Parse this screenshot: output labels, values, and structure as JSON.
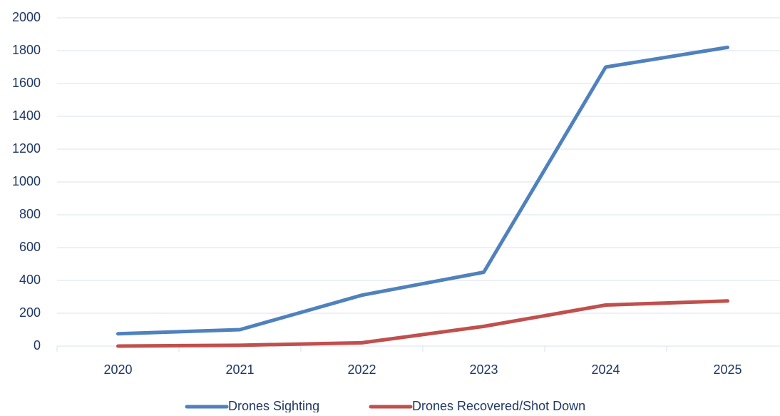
{
  "chart_data": {
    "type": "line",
    "categories": [
      "2020",
      "2021",
      "2022",
      "2023",
      "2024",
      "2025"
    ],
    "series": [
      {
        "name": "Drones Sighting",
        "color": "#4f81bd",
        "values": [
          75,
          100,
          310,
          450,
          1700,
          1820
        ]
      },
      {
        "name": "Drones Recovered/Shot Down",
        "color": "#c0504d",
        "values": [
          0,
          5,
          20,
          120,
          250,
          275
        ]
      }
    ],
    "ylim": [
      0,
      2000
    ],
    "yticks": [
      0,
      200,
      400,
      600,
      800,
      1000,
      1200,
      1400,
      1600,
      1800,
      2000
    ],
    "grid": true,
    "legend": "bottom"
  }
}
